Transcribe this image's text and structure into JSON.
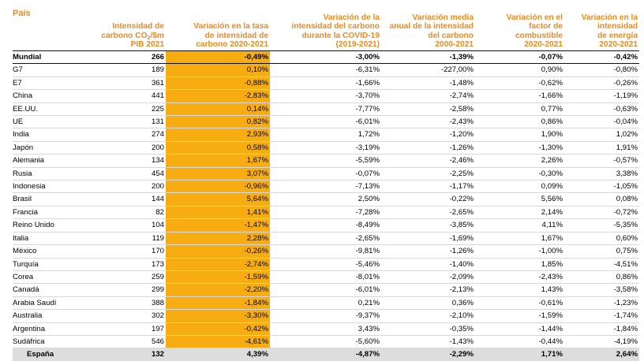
{
  "colors": {
    "header_text": "#ea8a1f",
    "highlight": "#f7ad12",
    "last_row_bg": "#dddddd"
  },
  "headers": [
    "País",
    "Intensidad de\ncarbono CO₂/$m\nPIB 2021",
    "Variación en la tasa\nde intensidad de\ncarbono 2020-2021",
    "Variación de la\nintensidad del carbono\ndurante la COVID-19\n(2019-2021)",
    "Variación media\nanual de la intensidad\ndel carbono\n2000-2021",
    "Variación en el\nfactor de\ncombustible\n2020-2021",
    "Variación en la\nintensidad\nde energía\n2020-2021"
  ],
  "rows": [
    [
      "Mundial",
      "266",
      "-0,49%",
      "-3,00%",
      "-1,39%",
      "-0,07%",
      "-0,42%"
    ],
    [
      "G7",
      "189",
      "0,10%",
      "-6,31%",
      "-227,00%",
      "0,90%",
      "-0,80%"
    ],
    [
      "E7",
      "361",
      "-0,88%",
      "-1,66%",
      "-1,48%",
      "-0,62%",
      "-0,26%"
    ],
    [
      "China",
      "441",
      "-2,83%",
      "-3,70%",
      "-2,74%",
      "-1,66%",
      "-1,19%"
    ],
    [
      "EE.UU.",
      "225",
      "0,14%",
      "-7,77%",
      "-2,58%",
      "0,77%",
      "-0,63%"
    ],
    [
      "UE",
      "131",
      "0,82%",
      "-6,01%",
      "-2,43%",
      "0,86%",
      "-0,04%"
    ],
    [
      "India",
      "274",
      "2,93%",
      "1,72%",
      "-1,20%",
      "1,90%",
      "1,02%"
    ],
    [
      "Japón",
      "200",
      "0,58%",
      "-3,19%",
      "-1,26%",
      "-1,30%",
      "1,91%"
    ],
    [
      "Alemania",
      "134",
      "1,67%",
      "-5,59%",
      "-2,46%",
      "2,26%",
      "-0,57%"
    ],
    [
      "Rusia",
      "454",
      "3,07%",
      "-0,07%",
      "-2,25%",
      "-0,30%",
      "3,38%"
    ],
    [
      "Indonesia",
      "200",
      "-0,96%",
      "-7,13%",
      "-1,17%",
      "0,09%",
      "-1,05%"
    ],
    [
      "Brasil",
      "144",
      "5,64%",
      "2,50%",
      "-0,22%",
      "5,56%",
      "0,08%"
    ],
    [
      "Francia",
      "82",
      "1,41%",
      "-7,28%",
      "-2,65%",
      "2,14%",
      "-0,72%"
    ],
    [
      "Reino Unido",
      "104",
      "-1,47%",
      "-8,49%",
      "-3,85%",
      "4,11%",
      "-5,35%"
    ],
    [
      "Italia",
      "119",
      "2,28%",
      "-2,65%",
      "-1,69%",
      "1,67%",
      "0,60%"
    ],
    [
      "México",
      "170",
      "-0,26%",
      "-9,81%",
      "-1,26%",
      "-1,00%",
      "0,75%"
    ],
    [
      "Turquía",
      "173",
      "-2,74%",
      "-5,46%",
      "-1,40%",
      "1,85%",
      "-4,51%"
    ],
    [
      "Corea",
      "259",
      "-1,59%",
      "-8,01%",
      "-2,09%",
      "-2,43%",
      "0,86%"
    ],
    [
      "Canadá",
      "299",
      "-2,20%",
      "-6,01%",
      "-2,13%",
      "1,43%",
      "-3,58%"
    ],
    [
      "Arabia Saudí",
      "388",
      "-1,84%",
      "0,21%",
      "0,36%",
      "-0,61%",
      "-1,23%"
    ],
    [
      "Australia",
      "302",
      "-3,30%",
      "-9,37%",
      "-2,10%",
      "-1,59%",
      "-1,74%"
    ],
    [
      "Argentina",
      "197",
      "-0,42%",
      "3,43%",
      "-0,35%",
      "-1,44%",
      "-1,84%"
    ],
    [
      "Sudáfrica",
      "546",
      "-4,61%",
      "-5,60%",
      "-1,43%",
      "-0,44%",
      "-4,19%"
    ],
    [
      "España",
      "132",
      "4,39%",
      "-4,87%",
      "-2,29%",
      "1,71%",
      "2,64%"
    ]
  ]
}
